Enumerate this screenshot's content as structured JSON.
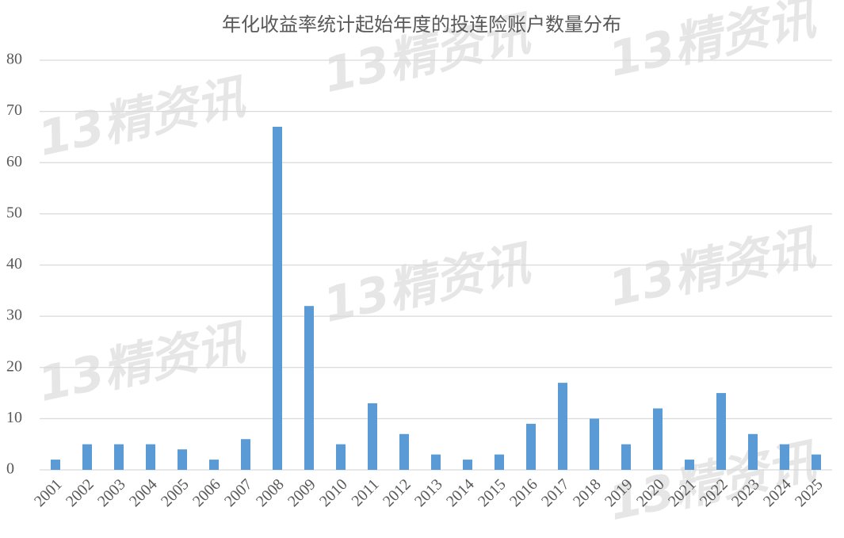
{
  "chart_data": {
    "type": "bar",
    "title": "年化收益率统计起始年度的投连险账户数量分布",
    "watermark": "13精资讯",
    "categories": [
      "2001",
      "2002",
      "2003",
      "2004",
      "2005",
      "2006",
      "2007",
      "2008",
      "2009",
      "2010",
      "2011",
      "2012",
      "2013",
      "2014",
      "2015",
      "2016",
      "2017",
      "2018",
      "2019",
      "2020",
      "2021",
      "2022",
      "2023",
      "2024",
      "2025"
    ],
    "values": [
      2,
      5,
      5,
      5,
      4,
      2,
      6,
      67,
      32,
      5,
      13,
      7,
      3,
      2,
      3,
      9,
      17,
      10,
      5,
      12,
      2,
      15,
      7,
      5,
      3
    ],
    "color": "#5b9bd5",
    "ylim": [
      0,
      80
    ],
    "yticks": [
      0,
      10,
      20,
      30,
      40,
      50,
      60,
      70,
      80
    ],
    "grid": true
  }
}
